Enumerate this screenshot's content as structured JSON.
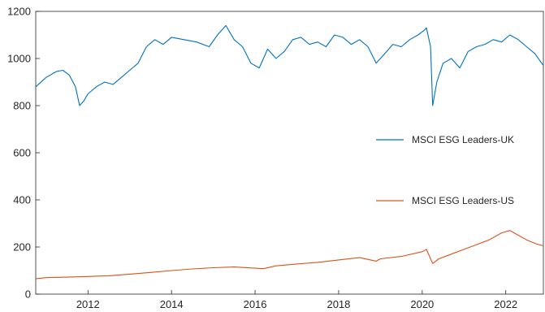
{
  "chart_data": {
    "type": "line",
    "title": "",
    "xlabel": "",
    "ylabel": "",
    "xlim": [
      2010.75,
      2022.9
    ],
    "ylim": [
      0,
      1200
    ],
    "xticks": [
      2012,
      2014,
      2016,
      2018,
      2020,
      2022
    ],
    "yticks": [
      0,
      200,
      400,
      600,
      800,
      1000,
      1200
    ],
    "grid": false,
    "legend_position": "right-middle",
    "series": [
      {
        "name": "MSCI ESG Leaders-UK",
        "color": "#0072BD",
        "x": [
          2010.75,
          2011.0,
          2011.25,
          2011.4,
          2011.55,
          2011.7,
          2011.8,
          2011.9,
          2012.0,
          2012.2,
          2012.4,
          2012.6,
          2012.8,
          2013.0,
          2013.2,
          2013.4,
          2013.6,
          2013.8,
          2014.0,
          2014.3,
          2014.6,
          2014.9,
          2015.1,
          2015.3,
          2015.5,
          2015.7,
          2015.9,
          2016.1,
          2016.3,
          2016.5,
          2016.7,
          2016.9,
          2017.1,
          2017.3,
          2017.5,
          2017.7,
          2017.9,
          2018.1,
          2018.3,
          2018.5,
          2018.7,
          2018.9,
          2019.1,
          2019.3,
          2019.5,
          2019.7,
          2019.9,
          2020.05,
          2020.1,
          2020.2,
          2020.25,
          2020.35,
          2020.5,
          2020.7,
          2020.9,
          2021.1,
          2021.3,
          2021.5,
          2021.7,
          2021.9,
          2022.1,
          2022.3,
          2022.5,
          2022.7,
          2022.9
        ],
        "y": [
          880,
          920,
          945,
          950,
          930,
          880,
          800,
          820,
          850,
          880,
          900,
          890,
          920,
          950,
          980,
          1050,
          1080,
          1060,
          1090,
          1080,
          1070,
          1050,
          1100,
          1140,
          1080,
          1050,
          980,
          960,
          1040,
          1000,
          1030,
          1080,
          1090,
          1060,
          1070,
          1050,
          1100,
          1090,
          1060,
          1080,
          1050,
          980,
          1020,
          1060,
          1050,
          1080,
          1100,
          1120,
          1130,
          1050,
          800,
          900,
          980,
          1000,
          960,
          1030,
          1050,
          1060,
          1080,
          1070,
          1100,
          1080,
          1050,
          1020,
          970
        ]
      },
      {
        "name": "MSCI ESG Leaders-US",
        "color": "#D95319",
        "x": [
          2010.75,
          2011.0,
          2011.5,
          2012.0,
          2012.5,
          2013.0,
          2013.5,
          2014.0,
          2014.5,
          2015.0,
          2015.5,
          2016.0,
          2016.2,
          2016.5,
          2017.0,
          2017.5,
          2018.0,
          2018.5,
          2018.9,
          2019.0,
          2019.5,
          2020.0,
          2020.1,
          2020.25,
          2020.4,
          2020.7,
          2021.0,
          2021.3,
          2021.6,
          2021.9,
          2022.1,
          2022.3,
          2022.5,
          2022.7,
          2022.9
        ],
        "y": [
          65,
          70,
          72,
          75,
          78,
          85,
          92,
          100,
          107,
          112,
          115,
          110,
          108,
          120,
          128,
          135,
          145,
          155,
          140,
          150,
          160,
          180,
          190,
          130,
          150,
          170,
          190,
          210,
          230,
          260,
          270,
          250,
          230,
          215,
          205
        ]
      }
    ]
  }
}
